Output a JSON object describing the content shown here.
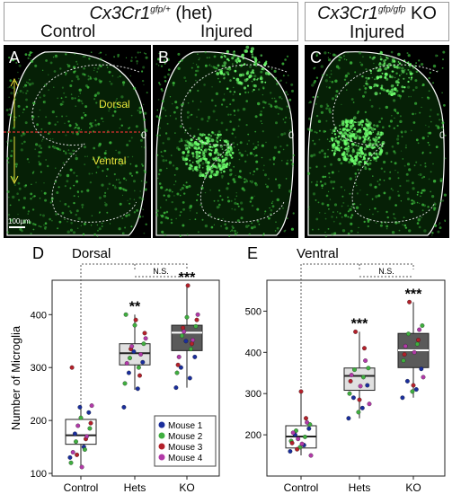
{
  "header": {
    "genotype_het": "Cx3Cr1",
    "genotype_het_sup": "gfp/+",
    "genotype_het_suffix": " (het)",
    "genotype_ko": "Cx3Cr1",
    "genotype_ko_sup": "gfp/gfp",
    "genotype_ko_suffix": " KO",
    "control": "Control",
    "injured_1": "Injured",
    "injured_2": "Injured"
  },
  "images": {
    "panels": [
      {
        "letter": "A"
      },
      {
        "letter": "B"
      },
      {
        "letter": "C"
      }
    ],
    "dorsal_label": "Dorsal",
    "ventral_label": "Ventral",
    "scalebar": "100µm",
    "zero": "0"
  },
  "colors": {
    "mouse1": "#1a2e9c",
    "mouse2": "#3fae3f",
    "mouse3": "#b3202a",
    "mouse4": "#b23aa8",
    "box_control": "#ffffff",
    "box_hets": "#e0e0e0",
    "box_ko": "#5a5a5a",
    "tissue_green": "#3fc23f",
    "annotation_yellow": "#e8e23a",
    "dashed_red": "#e03030"
  },
  "chart_data": [
    {
      "panel_letter": "D",
      "type": "box",
      "title": "Dorsal",
      "ylabel": "Number of Microglia",
      "categories": [
        "Control",
        "Hets",
        "KO"
      ],
      "ylim": [
        95,
        465
      ],
      "yticks": [
        100,
        200,
        300,
        400
      ],
      "boxes": [
        {
          "q1": 155,
          "median": 172,
          "q3": 202,
          "whisker_low": 112,
          "whisker_high": 230
        },
        {
          "q1": 305,
          "median": 327,
          "q3": 345,
          "whisker_low": 258,
          "whisker_high": 400
        },
        {
          "q1": 332,
          "median": 366,
          "q3": 380,
          "whisker_low": 262,
          "whisker_high": 455
        }
      ],
      "significance": [
        "",
        "**",
        "***"
      ],
      "ns_label": "N.S.",
      "legend": [
        "Mouse 1",
        "Mouse 2",
        "Mouse 3",
        "Mouse 4"
      ],
      "points": [
        [
          [
            130,
            1
          ],
          [
            150,
            1
          ],
          [
            175,
            1
          ],
          [
            215,
            1
          ],
          [
            225,
            1
          ],
          [
            120,
            2
          ],
          [
            145,
            2
          ],
          [
            160,
            2
          ],
          [
            185,
            2
          ],
          [
            205,
            2
          ],
          [
            300,
            3
          ],
          [
            165,
            3
          ],
          [
            135,
            3
          ],
          [
            195,
            3
          ],
          [
            112,
            4
          ],
          [
            140,
            4
          ],
          [
            170,
            4
          ],
          [
            190,
            4
          ],
          [
            228,
            4
          ]
        ],
        [
          [
            225,
            1
          ],
          [
            260,
            1
          ],
          [
            290,
            1
          ],
          [
            310,
            1
          ],
          [
            330,
            1
          ],
          [
            270,
            2
          ],
          [
            300,
            2
          ],
          [
            318,
            2
          ],
          [
            345,
            2
          ],
          [
            380,
            2
          ],
          [
            400,
            2
          ],
          [
            285,
            3
          ],
          [
            335,
            3
          ],
          [
            365,
            3
          ],
          [
            390,
            3
          ],
          [
            308,
            4
          ],
          [
            325,
            4
          ],
          [
            340,
            4
          ],
          [
            355,
            4
          ]
        ],
        [
          [
            262,
            1
          ],
          [
            280,
            1
          ],
          [
            300,
            1
          ],
          [
            320,
            1
          ],
          [
            350,
            1
          ],
          [
            290,
            2
          ],
          [
            335,
            2
          ],
          [
            360,
            2
          ],
          [
            378,
            2
          ],
          [
            395,
            2
          ],
          [
            305,
            3
          ],
          [
            345,
            3
          ],
          [
            375,
            3
          ],
          [
            390,
            3
          ],
          [
            455,
            3
          ],
          [
            320,
            4
          ],
          [
            352,
            4
          ],
          [
            368,
            4
          ],
          [
            400,
            4
          ]
        ]
      ]
    },
    {
      "panel_letter": "E",
      "type": "box",
      "title": "Ventral",
      "ylabel": "",
      "categories": [
        "Control",
        "Hets",
        "KO"
      ],
      "ylim": [
        100,
        575
      ],
      "yticks": [
        200,
        300,
        400,
        500
      ],
      "boxes": [
        {
          "q1": 168,
          "median": 196,
          "q3": 222,
          "whisker_low": 150,
          "whisker_high": 305
        },
        {
          "q1": 308,
          "median": 343,
          "q3": 362,
          "whisker_low": 240,
          "whisker_high": 450
        },
        {
          "q1": 363,
          "median": 405,
          "q3": 446,
          "whisker_low": 290,
          "whisker_high": 522
        }
      ],
      "significance": [
        "",
        "***",
        "***"
      ],
      "ns_label": "N.S.",
      "points": [
        [
          [
            160,
            1
          ],
          [
            175,
            1
          ],
          [
            200,
            1
          ],
          [
            215,
            1
          ],
          [
            170,
            2
          ],
          [
            185,
            2
          ],
          [
            195,
            2
          ],
          [
            210,
            2
          ],
          [
            225,
            2
          ],
          [
            305,
            3
          ],
          [
            180,
            3
          ],
          [
            240,
            3
          ],
          [
            165,
            3
          ],
          [
            150,
            4
          ],
          [
            178,
            4
          ],
          [
            205,
            4
          ],
          [
            230,
            4
          ],
          [
            190,
            4
          ]
        ],
        [
          [
            240,
            1
          ],
          [
            265,
            1
          ],
          [
            290,
            1
          ],
          [
            320,
            1
          ],
          [
            255,
            2
          ],
          [
            300,
            2
          ],
          [
            340,
            2
          ],
          [
            358,
            2
          ],
          [
            362,
            2
          ],
          [
            285,
            3
          ],
          [
            330,
            3
          ],
          [
            410,
            3
          ],
          [
            450,
            3
          ],
          [
            275,
            4
          ],
          [
            318,
            4
          ],
          [
            345,
            4
          ],
          [
            380,
            4
          ]
        ],
        [
          [
            290,
            1
          ],
          [
            310,
            1
          ],
          [
            330,
            1
          ],
          [
            360,
            1
          ],
          [
            305,
            2
          ],
          [
            380,
            2
          ],
          [
            420,
            2
          ],
          [
            445,
            2
          ],
          [
            465,
            2
          ],
          [
            320,
            3
          ],
          [
            395,
            3
          ],
          [
            430,
            3
          ],
          [
            522,
            3
          ],
          [
            340,
            4
          ],
          [
            400,
            4
          ],
          [
            415,
            4
          ],
          [
            455,
            4
          ]
        ]
      ]
    }
  ]
}
